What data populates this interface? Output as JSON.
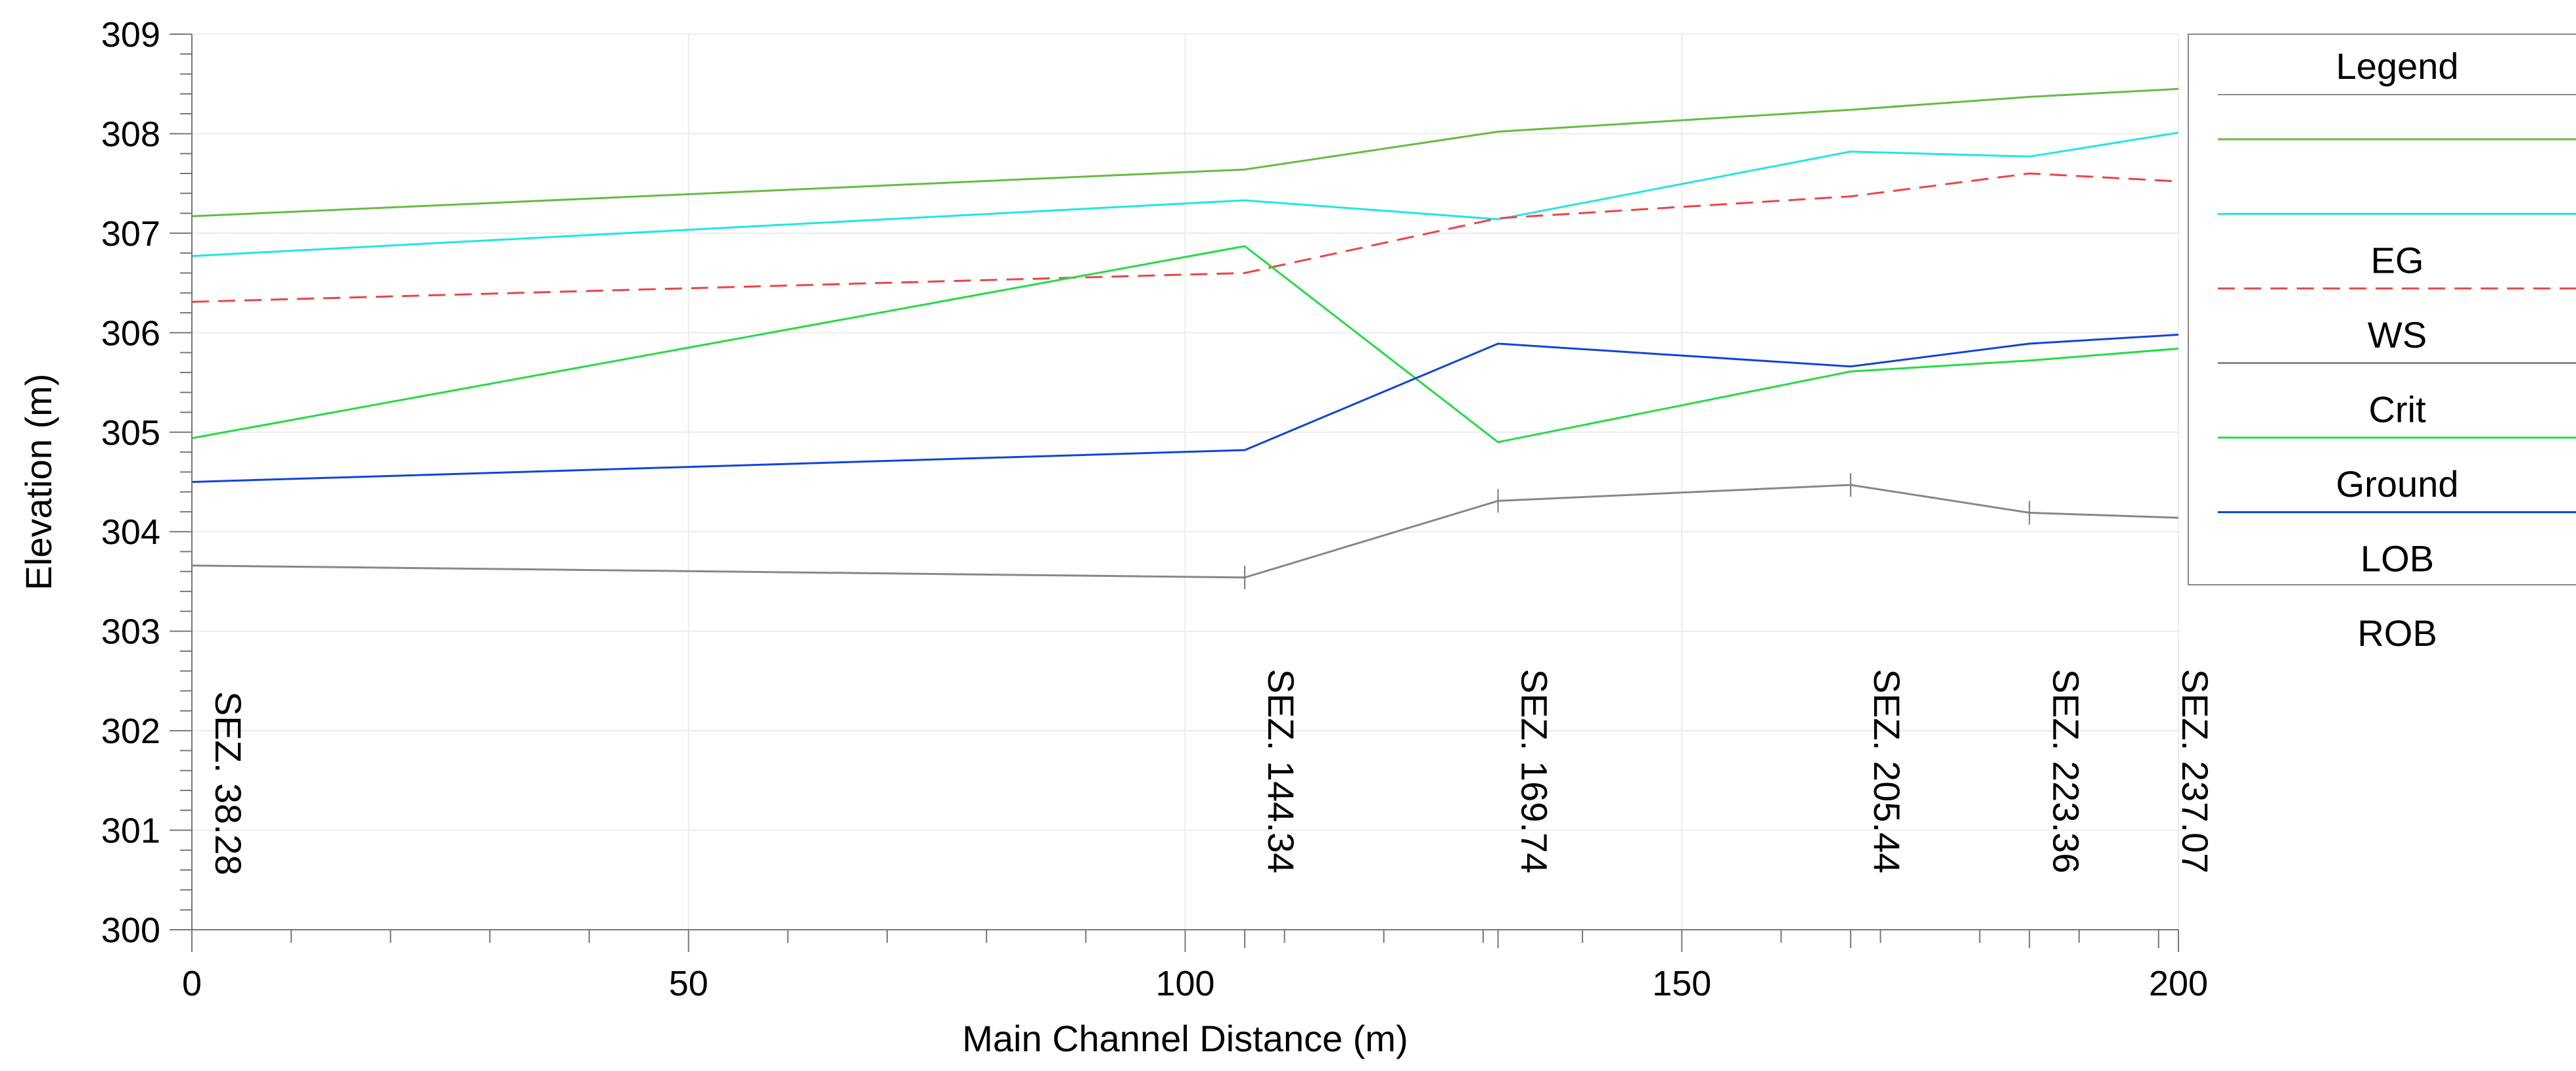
{
  "chart_data": {
    "type": "line",
    "xlabel": "Main Channel Distance (m)",
    "ylabel": "Elevation (m)",
    "xlim": [
      0,
      200
    ],
    "ylim": [
      300,
      309
    ],
    "xticks": [
      0,
      50,
      100,
      150,
      200
    ],
    "yticks": [
      300,
      301,
      302,
      303,
      304,
      305,
      306,
      307,
      308,
      309
    ],
    "grid": true,
    "legend": {
      "title": "Legend",
      "position": "right",
      "entries": [
        {
          "label": "",
          "color": "#66bb44",
          "dash": "solid"
        },
        {
          "label": "EG",
          "color": "#22e5e5",
          "dash": "solid"
        },
        {
          "label": "WS",
          "color": "#ee4444",
          "dash": "dashed"
        },
        {
          "label": "Crit",
          "color": "#888888",
          "dash": "solid"
        },
        {
          "label": "Ground",
          "color": "#22dd44",
          "dash": "solid"
        },
        {
          "label": "LOB",
          "color": "#1144dd",
          "dash": "solid"
        },
        {
          "label": "ROB",
          "color": "",
          "dash": "none"
        }
      ]
    },
    "stations": [
      {
        "label": "SEZ. 38.28",
        "x": 0
      },
      {
        "label": "SEZ. 144.34",
        "x": 106
      },
      {
        "label": "SEZ. 169.74",
        "x": 131.5
      },
      {
        "label": "SEZ. 205.44",
        "x": 167
      },
      {
        "label": "SEZ. 223.36",
        "x": 185
      },
      {
        "label": "SEZ. 237.07",
        "x": 198
      }
    ],
    "series": [
      {
        "color": "#66bb44",
        "dash": "solid",
        "x": [
          0,
          106,
          131.5,
          167,
          185,
          200
        ],
        "y": [
          307.17,
          307.64,
          308.02,
          308.24,
          308.37,
          308.45
        ]
      },
      {
        "color": "#22e5e5",
        "dash": "solid",
        "x": [
          0,
          106,
          131.5,
          167,
          185,
          200
        ],
        "y": [
          306.77,
          307.33,
          307.14,
          307.82,
          307.77,
          308.01
        ]
      },
      {
        "color": "#ee4444",
        "dash": "dashed",
        "x": [
          0,
          106,
          131.5,
          167,
          185,
          200
        ],
        "y": [
          306.31,
          306.6,
          307.15,
          307.37,
          307.6,
          307.52
        ]
      },
      {
        "color": "#22dd44",
        "dash": "solid",
        "x": [
          0,
          106,
          131.5,
          167,
          185,
          200
        ],
        "y": [
          304.94,
          306.87,
          304.9,
          305.61,
          305.72,
          305.84
        ]
      },
      {
        "color": "#1144dd",
        "dash": "solid",
        "x": [
          0,
          106,
          131.5,
          167,
          185,
          200
        ],
        "y": [
          304.5,
          304.82,
          305.89,
          305.66,
          305.89,
          305.98
        ]
      },
      {
        "color": "#888888",
        "dash": "solid",
        "x": [
          0,
          106,
          131.5,
          167,
          185,
          200
        ],
        "y": [
          303.66,
          303.54,
          304.31,
          304.47,
          304.19,
          304.14
        ]
      }
    ]
  }
}
